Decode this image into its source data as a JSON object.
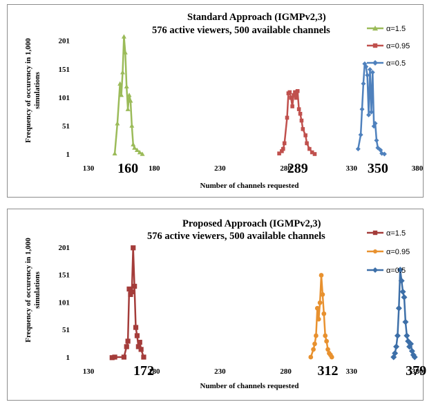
{
  "chart_data": [
    {
      "type": "line",
      "title": "Standard Approach (IGMPv2,3)",
      "subtitle": "576 active viewers,  500 available channels",
      "xlabel": "Number of channels requested",
      "ylabel": "Frequency of occurency in 1,000 simulations",
      "x_ticks": [
        "130",
        "180",
        "230",
        "280",
        "330",
        "380"
      ],
      "y_ticks": [
        "1",
        "51",
        "101",
        "151",
        "201"
      ],
      "xlim": [
        130,
        380
      ],
      "ylim": [
        1,
        225
      ],
      "legend_position": "top-right",
      "annotations": [
        {
          "text": "160",
          "x": 160
        },
        {
          "text": "289",
          "x": 289
        },
        {
          "text": "350",
          "x": 350
        }
      ],
      "series": [
        {
          "name": "α=1.5",
          "color": "#9bbb59",
          "marker": "triangle",
          "points": [
            [
              150,
              2
            ],
            [
              152,
              55
            ],
            [
              154,
              125
            ],
            [
              155,
              105
            ],
            [
              156,
              145
            ],
            [
              157,
              208
            ],
            [
              158,
              180
            ],
            [
              159,
              120
            ],
            [
              160,
              80
            ],
            [
              161,
              105
            ],
            [
              162,
              95
            ],
            [
              163,
              51
            ],
            [
              164,
              18
            ],
            [
              165,
              12
            ],
            [
              167,
              8
            ],
            [
              169,
              4
            ],
            [
              171,
              1
            ]
          ]
        },
        {
          "name": "α=0.95",
          "color": "#c0504d",
          "marker": "square",
          "points": [
            [
              275,
              2
            ],
            [
              277,
              6
            ],
            [
              278,
              10
            ],
            [
              279,
              20
            ],
            [
              281,
              65
            ],
            [
              282,
              108
            ],
            [
              283,
              110
            ],
            [
              284,
              100
            ],
            [
              285,
              85
            ],
            [
              286,
              105
            ],
            [
              287,
              110
            ],
            [
              288,
              100
            ],
            [
              289,
              112
            ],
            [
              290,
              80
            ],
            [
              291,
              72
            ],
            [
              292,
              60
            ],
            [
              293,
              45
            ],
            [
              295,
              34
            ],
            [
              296,
              20
            ],
            [
              298,
              10
            ],
            [
              300,
              4
            ],
            [
              302,
              1
            ]
          ]
        },
        {
          "name": "α=0.5",
          "color": "#4f81bd",
          "marker": "diamond",
          "points": [
            [
              335,
              10
            ],
            [
              337,
              35
            ],
            [
              338,
              80
            ],
            [
              339,
              125
            ],
            [
              340,
              160
            ],
            [
              341,
              155
            ],
            [
              342,
              140
            ],
            [
              343,
              70
            ],
            [
              344,
              150
            ],
            [
              345,
              75
            ],
            [
              346,
              145
            ],
            [
              347,
              50
            ],
            [
              348,
              55
            ],
            [
              349,
              25
            ],
            [
              350,
              12
            ],
            [
              352,
              8
            ],
            [
              353,
              2
            ],
            [
              355,
              1
            ]
          ]
        }
      ]
    },
    {
      "type": "line",
      "title": "Proposed Approach (IGMPv2,3)",
      "subtitle": "576 active viewers, 500 available channels",
      "xlabel": "Number of channels requested",
      "ylabel": "Frequency of occurency in 1,000 simulations",
      "x_ticks": [
        "130",
        "180",
        "230",
        "280",
        "330",
        "380"
      ],
      "y_ticks": [
        "1",
        "51",
        "101",
        "151",
        "201"
      ],
      "xlim": [
        130,
        380
      ],
      "ylim": [
        1,
        245
      ],
      "legend_position": "top-right",
      "annotations": [
        {
          "text": "172",
          "x": 172
        },
        {
          "text": "312",
          "x": 312
        },
        {
          "text": "379",
          "x": 379
        }
      ],
      "series": [
        {
          "name": "α=1.5",
          "color": "#a43c3a",
          "marker": "square",
          "points": [
            [
              148,
              0
            ],
            [
              150,
              1
            ],
            [
              157,
              1
            ],
            [
              159,
              20
            ],
            [
              160,
              30
            ],
            [
              161,
              125
            ],
            [
              162,
              115
            ],
            [
              163,
              120
            ],
            [
              164,
              200
            ],
            [
              165,
              130
            ],
            [
              166,
              55
            ],
            [
              167,
              40
            ],
            [
              168,
              20
            ],
            [
              169,
              28
            ],
            [
              170,
              15
            ],
            [
              172,
              1
            ]
          ]
        },
        {
          "name": "α=0.95",
          "color": "#e8912f",
          "marker": "circle",
          "points": [
            [
              299,
              1
            ],
            [
              301,
              15
            ],
            [
              302,
              25
            ],
            [
              303,
              40
            ],
            [
              304,
              90
            ],
            [
              305,
              70
            ],
            [
              306,
              100
            ],
            [
              307,
              150
            ],
            [
              308,
              115
            ],
            [
              309,
              80
            ],
            [
              310,
              40
            ],
            [
              311,
              30
            ],
            [
              312,
              15
            ],
            [
              313,
              8
            ],
            [
              314,
              5
            ],
            [
              315,
              1
            ]
          ]
        },
        {
          "name": "α=0.5",
          "color": "#3d6fa8",
          "marker": "diamond",
          "points": [
            [
              362,
              1
            ],
            [
              363,
              8
            ],
            [
              364,
              20
            ],
            [
              365,
              40
            ],
            [
              366,
              90
            ],
            [
              367,
              160
            ],
            [
              368,
              140
            ],
            [
              369,
              120
            ],
            [
              370,
              110
            ],
            [
              371,
              65
            ],
            [
              372,
              40
            ],
            [
              373,
              30
            ],
            [
              374,
              20
            ],
            [
              375,
              25
            ],
            [
              376,
              12
            ],
            [
              377,
              5
            ],
            [
              378,
              1
            ]
          ]
        }
      ]
    }
  ]
}
